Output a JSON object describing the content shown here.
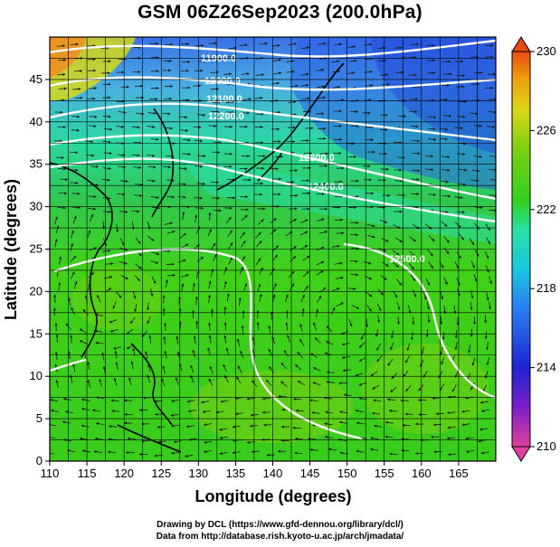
{
  "title": "GSM 06Z26Sep2023 (200.0hPa)",
  "xaxis": {
    "label": "Longitude (degrees)",
    "range": [
      110,
      170
    ],
    "ticks": [
      "110",
      "115",
      "120",
      "125",
      "130",
      "135",
      "140",
      "145",
      "150",
      "155",
      "160",
      "165"
    ]
  },
  "yaxis": {
    "label": "Latitude (degrees)",
    "range": [
      0,
      50
    ],
    "ticks": [
      "0",
      "5",
      "10",
      "15",
      "20",
      "25",
      "30",
      "35",
      "40",
      "45"
    ]
  },
  "colorbar": {
    "range": [
      210,
      230
    ],
    "labels": [
      "230",
      "226",
      "222",
      "218",
      "214",
      "210"
    ],
    "colors": [
      "#e0409a",
      "#7a1fc8",
      "#1e24d0",
      "#2a7ff0",
      "#18c8e0",
      "#28e0a0",
      "#30d020",
      "#7ad010",
      "#d8d818",
      "#f0a010",
      "#e84a10"
    ]
  },
  "contours": [
    {
      "label": "11900.0"
    },
    {
      "label": "12000.0"
    },
    {
      "label": "12100.0"
    },
    {
      "label": "12200.0"
    },
    {
      "label": "12300.0"
    },
    {
      "label": "12400.0"
    },
    {
      "label": "12500.0"
    }
  ],
  "credit_line1": "Drawing by DCL (https://www.gfd-dennou.org/library/dcl/)",
  "credit_line2": "Data from http://database.rish.kyoto-u.ac.jp/arch/jmadata/"
}
